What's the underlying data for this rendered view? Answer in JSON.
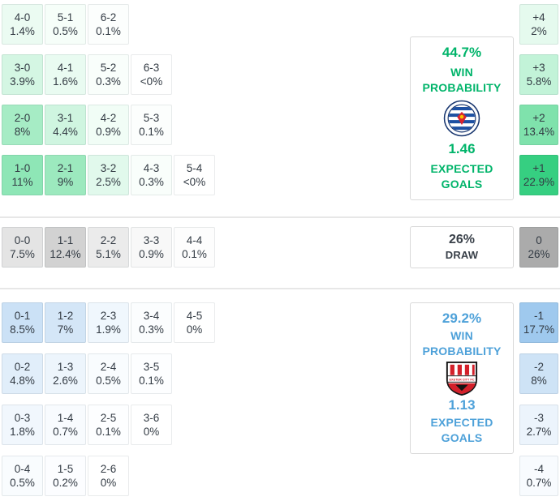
{
  "chart_data": {
    "type": "heatmap",
    "panels": {
      "home": {
        "win_probability": "44.7%",
        "win_probability_label": "WIN PROBABILITY",
        "expected_goals": "1.46",
        "expected_goals_label": "EXPECTED GOALS",
        "badge": "reading-fc-crest",
        "accent": "#00b46a"
      },
      "draw": {
        "probability": "26%",
        "label": "DRAW",
        "accent": "#394049"
      },
      "away": {
        "win_probability": "29.2%",
        "win_probability_label": "WIN PROBABILITY",
        "expected_goals": "1.13",
        "expected_goals_label": "EXPECTED GOALS",
        "badge": "exeter-city-crest",
        "badge_text": "EXETER CITY FC",
        "accent": "#4ea1d9"
      }
    },
    "score_grid": {
      "home_rows": [
        [
          {
            "score": "4-0",
            "prob": "1.4%",
            "bg": "#ebfbf2"
          },
          {
            "score": "5-1",
            "prob": "0.5%",
            "bg": "#f6fef9"
          },
          {
            "score": "6-2",
            "prob": "0.1%",
            "bg": "#fcfefd"
          }
        ],
        [
          {
            "score": "3-0",
            "prob": "3.9%",
            "bg": "#d4f6e3"
          },
          {
            "score": "4-1",
            "prob": "1.6%",
            "bg": "#e9fbf1"
          },
          {
            "score": "5-2",
            "prob": "0.3%",
            "bg": "#f9fefb"
          },
          {
            "score": "6-3",
            "prob": "<0%",
            "bg": "#ffffff"
          }
        ],
        [
          {
            "score": "2-0",
            "prob": "8%",
            "bg": "#a6ecc5"
          },
          {
            "score": "3-1",
            "prob": "4.4%",
            "bg": "#cff5e0"
          },
          {
            "score": "4-2",
            "prob": "0.9%",
            "bg": "#f1fdf6"
          },
          {
            "score": "5-3",
            "prob": "0.1%",
            "bg": "#fcfefd"
          }
        ],
        [
          {
            "score": "1-0",
            "prob": "11%",
            "bg": "#8ee6b6"
          },
          {
            "score": "2-1",
            "prob": "9%",
            "bg": "#9ce9be"
          },
          {
            "score": "3-2",
            "prob": "2.5%",
            "bg": "#e1f9ec"
          },
          {
            "score": "4-3",
            "prob": "0.3%",
            "bg": "#f9fefb"
          },
          {
            "score": "5-4",
            "prob": "<0%",
            "bg": "#ffffff"
          }
        ]
      ],
      "draw_rows": [
        [
          {
            "score": "0-0",
            "prob": "7.5%",
            "bg": "#e4e4e4"
          },
          {
            "score": "1-1",
            "prob": "12.4%",
            "bg": "#d2d2d2"
          },
          {
            "score": "2-2",
            "prob": "5.1%",
            "bg": "#ebebeb"
          },
          {
            "score": "3-3",
            "prob": "0.9%",
            "bg": "#f8f8f8"
          },
          {
            "score": "4-4",
            "prob": "0.1%",
            "bg": "#fdfdfd"
          }
        ]
      ],
      "away_rows": [
        [
          {
            "score": "0-1",
            "prob": "8.5%",
            "bg": "#cbe1f6"
          },
          {
            "score": "1-2",
            "prob": "7%",
            "bg": "#d4e6f7"
          },
          {
            "score": "2-3",
            "prob": "1.9%",
            "bg": "#f0f7fd"
          },
          {
            "score": "3-4",
            "prob": "0.3%",
            "bg": "#fbfdfe"
          },
          {
            "score": "4-5",
            "prob": "0%",
            "bg": "#ffffff"
          }
        ],
        [
          {
            "score": "0-2",
            "prob": "4.8%",
            "bg": "#e1eefa"
          },
          {
            "score": "1-3",
            "prob": "2.6%",
            "bg": "#edf5fc"
          },
          {
            "score": "2-4",
            "prob": "0.5%",
            "bg": "#f9fcfe"
          },
          {
            "score": "3-5",
            "prob": "0.1%",
            "bg": "#fdfeff"
          }
        ],
        [
          {
            "score": "0-3",
            "prob": "1.8%",
            "bg": "#f1f7fd"
          },
          {
            "score": "1-4",
            "prob": "0.7%",
            "bg": "#f8fbfe"
          },
          {
            "score": "2-5",
            "prob": "0.1%",
            "bg": "#fdfeff"
          },
          {
            "score": "3-6",
            "prob": "0%",
            "bg": "#ffffff"
          }
        ],
        [
          {
            "score": "0-4",
            "prob": "0.5%",
            "bg": "#f9fcfe"
          },
          {
            "score": "1-5",
            "prob": "0.2%",
            "bg": "#fcfdff"
          },
          {
            "score": "2-6",
            "prob": "0%",
            "bg": "#ffffff"
          }
        ]
      ]
    },
    "goal_diff": {
      "home": [
        {
          "diff": "+4",
          "prob": "2%",
          "bg": "#e5faee"
        },
        {
          "diff": "+3",
          "prob": "5.8%",
          "bg": "#c2f3d8"
        },
        {
          "diff": "+2",
          "prob": "13.4%",
          "bg": "#7fe2ac"
        },
        {
          "diff": "+1",
          "prob": "22.9%",
          "bg": "#36cf81"
        }
      ],
      "draw": [
        {
          "diff": "0",
          "prob": "26%",
          "bg": "#ababab"
        }
      ],
      "away": [
        {
          "diff": "-1",
          "prob": "17.7%",
          "bg": "#9fc9ee"
        },
        {
          "diff": "-2",
          "prob": "8%",
          "bg": "#cee3f6"
        },
        {
          "diff": "-3",
          "prob": "2.7%",
          "bg": "#ecf4fc"
        },
        {
          "diff": "-4",
          "prob": "0.7%",
          "bg": "#f8fbfe"
        }
      ]
    }
  }
}
